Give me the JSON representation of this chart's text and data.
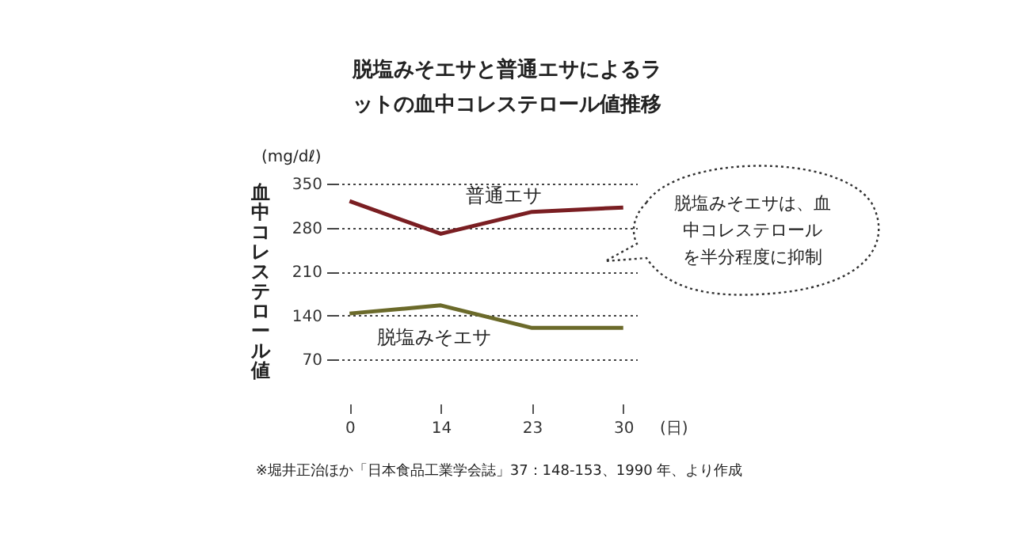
{
  "chart_data": {
    "type": "line",
    "title": "脱塩みそエサと普通エサによるラットの血中コレステロール値推移",
    "ylabel": "血中コレステロール値",
    "xlabel": "(日)",
    "categories": [
      "0",
      "14",
      "23",
      "30"
    ],
    "series": [
      {
        "name": "普通エサ",
        "color": "#7a1e22",
        "values": [
          322,
          270,
          305,
          312
        ]
      },
      {
        "name": "脱塩みそエサ",
        "color": "#6b6a2a",
        "values": [
          143,
          156,
          120,
          120
        ]
      }
    ],
    "ylim": [
      70,
      350
    ],
    "yticks": [
      70,
      140,
      210,
      280,
      350
    ],
    "grid": "y",
    "annotations": [
      "(mg/dℓ)",
      "脱塩みそエサは、血中コレステロールを半分程度に抑制",
      "※堀井正治ほか「日本食品工業学会誌」37：148-153、1990 年、より作成"
    ]
  }
}
